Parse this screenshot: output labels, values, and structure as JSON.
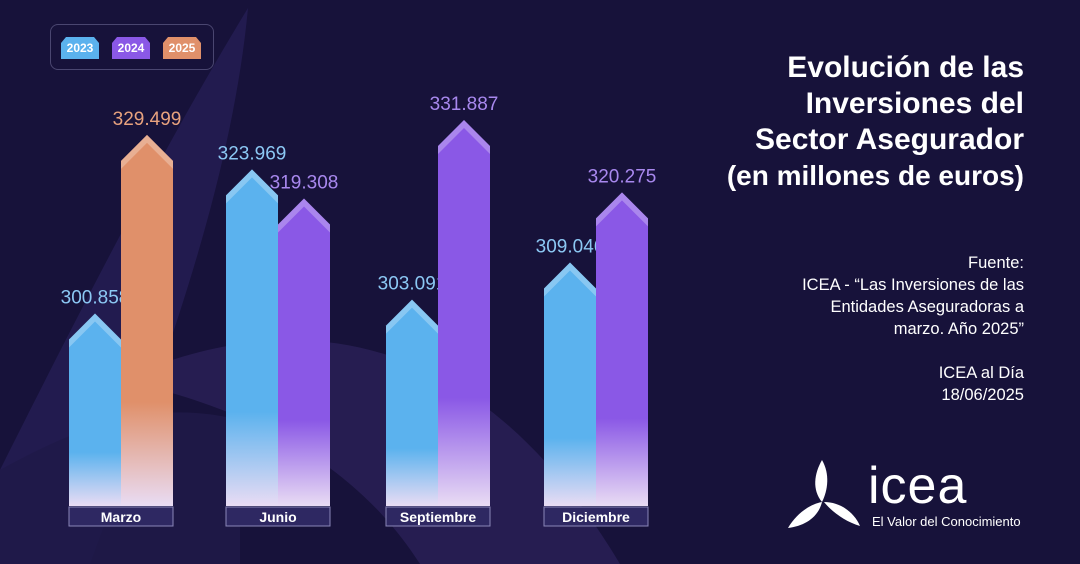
{
  "title": {
    "line1": "Evolución de las",
    "line2": "Inversiones del",
    "line3": "Sector Asegurador",
    "line4": "(en millones de euros)"
  },
  "source": {
    "label": "Fuente:",
    "line1": "ICEA - “Las Inversiones de las",
    "line2": "Entidades Aseguradoras a",
    "line3": "marzo. Año 2025”",
    "line4": "ICEA al Día",
    "line5": "18/06/2025"
  },
  "logo": {
    "word": "icea",
    "tagline": "El Valor del Conocimiento"
  },
  "chart_data": {
    "type": "bar",
    "categories": [
      "Marzo",
      "Junio",
      "Septiembre",
      "Diciembre"
    ],
    "series": [
      {
        "name": "2023",
        "color": "#5bb2ee",
        "values": [
          300.858,
          323.969,
          303.091,
          309.046
        ]
      },
      {
        "name": "2024",
        "color": "#8a58e6",
        "values": [
          null,
          319.308,
          331.887,
          320.275
        ]
      },
      {
        "name": "2025",
        "color": "#e0906a",
        "values": [
          329.499,
          null,
          null,
          null
        ]
      }
    ],
    "value_labels": {
      "2023": [
        "300.858",
        "323.969",
        "303.091",
        "309.046"
      ],
      "2024": [
        null,
        "319.308",
        "331.887",
        "320.275"
      ],
      "2025": [
        "329.499",
        null,
        null,
        null
      ]
    },
    "legend_position": "top-left",
    "grid": false
  }
}
